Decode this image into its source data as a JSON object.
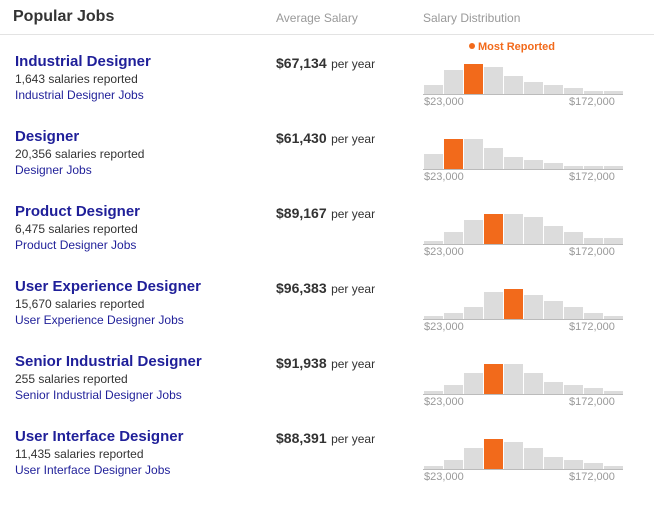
{
  "header": {
    "title": "Popular Jobs",
    "avg_salary_label": "Average Salary",
    "distribution_label": "Salary Distribution"
  },
  "most_reported_label": "Most Reported",
  "per_year_label": "per year",
  "colors": {
    "bar": "#dcdcdc",
    "highlight": "#f26a1b",
    "link": "#1f1f99",
    "muted": "#999999"
  },
  "jobs": [
    {
      "title": "Industrial Designer",
      "count": "1,643 salaries reported",
      "link": "Industrial Designer Jobs",
      "salary": "$67,134",
      "range_min": "$23,000",
      "range_max": "$172,000",
      "chart_data": {
        "type": "bar",
        "values": [
          3,
          8,
          10,
          9,
          6,
          4,
          3,
          2,
          1,
          1
        ],
        "highlight_index": 2
      }
    },
    {
      "title": "Designer",
      "count": "20,356 salaries reported",
      "link": "Designer Jobs",
      "salary": "$61,430",
      "range_min": "$23,000",
      "range_max": "$172,000",
      "chart_data": {
        "type": "bar",
        "values": [
          5,
          10,
          10,
          7,
          4,
          3,
          2,
          1,
          1,
          1
        ],
        "highlight_index": 1
      }
    },
    {
      "title": "Product Designer",
      "count": "6,475 salaries reported",
      "link": "Product Designer Jobs",
      "salary": "$89,167",
      "range_min": "$23,000",
      "range_max": "$172,000",
      "chart_data": {
        "type": "bar",
        "values": [
          1,
          4,
          8,
          10,
          10,
          9,
          6,
          4,
          2,
          2
        ],
        "highlight_index": 3
      }
    },
    {
      "title": "User Experience Designer",
      "count": "15,670 salaries reported",
      "link": "User Experience Designer Jobs",
      "salary": "$96,383",
      "range_min": "$23,000",
      "range_max": "$172,000",
      "chart_data": {
        "type": "bar",
        "values": [
          1,
          2,
          4,
          9,
          10,
          8,
          6,
          4,
          2,
          1
        ],
        "highlight_index": 4
      }
    },
    {
      "title": "Senior Industrial Designer",
      "count": "255 salaries reported",
      "link": "Senior Industrial Designer Jobs",
      "salary": "$91,938",
      "range_min": "$23,000",
      "range_max": "$172,000",
      "chart_data": {
        "type": "bar",
        "values": [
          1,
          3,
          7,
          10,
          10,
          7,
          4,
          3,
          2,
          1
        ],
        "highlight_index": 3
      }
    },
    {
      "title": "User Interface Designer",
      "count": "11,435 salaries reported",
      "link": "User Interface Designer Jobs",
      "salary": "$88,391",
      "range_min": "$23,000",
      "range_max": "$172,000",
      "chart_data": {
        "type": "bar",
        "values": [
          1,
          3,
          7,
          10,
          9,
          7,
          4,
          3,
          2,
          1
        ],
        "highlight_index": 3
      }
    }
  ]
}
